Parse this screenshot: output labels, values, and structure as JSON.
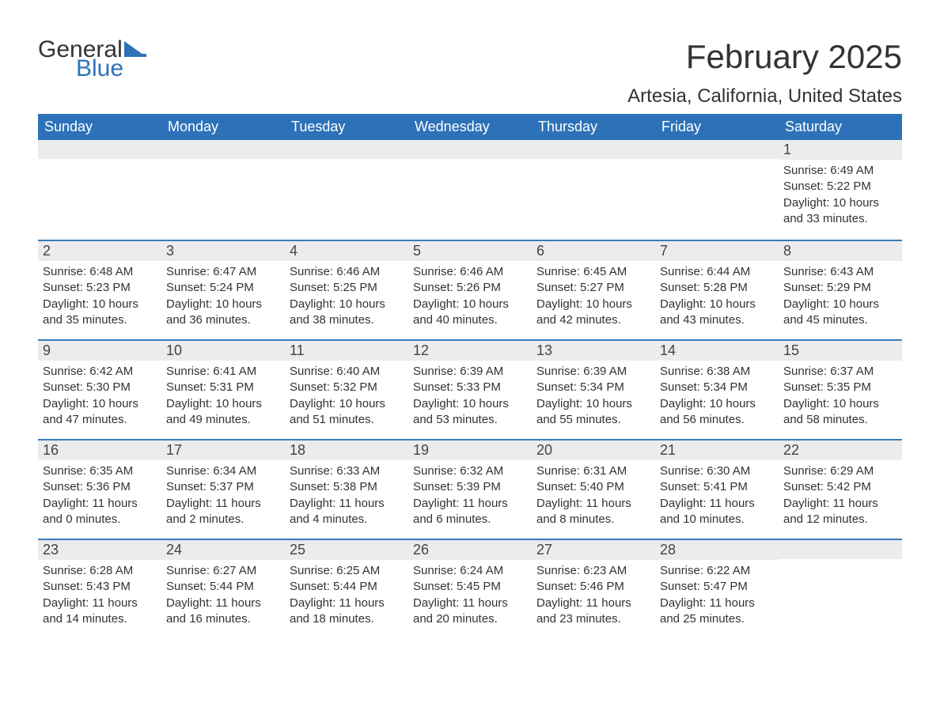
{
  "logo": {
    "word1": "General",
    "word2": "Blue"
  },
  "title": "February 2025",
  "location": "Artesia, California, United States",
  "colors": {
    "header_bg": "#2d72b8",
    "header_text": "#ffffff",
    "daynum_bg": "#ececec",
    "row_border": "#3a7abf",
    "body_text": "#333333",
    "logo_blue": "#2d72b8"
  },
  "weekdays": [
    "Sunday",
    "Monday",
    "Tuesday",
    "Wednesday",
    "Thursday",
    "Friday",
    "Saturday"
  ],
  "first_weekday_index": 6,
  "days": [
    {
      "n": 1,
      "sunrise": "6:49 AM",
      "sunset": "5:22 PM",
      "daylight": "10 hours and 33 minutes."
    },
    {
      "n": 2,
      "sunrise": "6:48 AM",
      "sunset": "5:23 PM",
      "daylight": "10 hours and 35 minutes."
    },
    {
      "n": 3,
      "sunrise": "6:47 AM",
      "sunset": "5:24 PM",
      "daylight": "10 hours and 36 minutes."
    },
    {
      "n": 4,
      "sunrise": "6:46 AM",
      "sunset": "5:25 PM",
      "daylight": "10 hours and 38 minutes."
    },
    {
      "n": 5,
      "sunrise": "6:46 AM",
      "sunset": "5:26 PM",
      "daylight": "10 hours and 40 minutes."
    },
    {
      "n": 6,
      "sunrise": "6:45 AM",
      "sunset": "5:27 PM",
      "daylight": "10 hours and 42 minutes."
    },
    {
      "n": 7,
      "sunrise": "6:44 AM",
      "sunset": "5:28 PM",
      "daylight": "10 hours and 43 minutes."
    },
    {
      "n": 8,
      "sunrise": "6:43 AM",
      "sunset": "5:29 PM",
      "daylight": "10 hours and 45 minutes."
    },
    {
      "n": 9,
      "sunrise": "6:42 AM",
      "sunset": "5:30 PM",
      "daylight": "10 hours and 47 minutes."
    },
    {
      "n": 10,
      "sunrise": "6:41 AM",
      "sunset": "5:31 PM",
      "daylight": "10 hours and 49 minutes."
    },
    {
      "n": 11,
      "sunrise": "6:40 AM",
      "sunset": "5:32 PM",
      "daylight": "10 hours and 51 minutes."
    },
    {
      "n": 12,
      "sunrise": "6:39 AM",
      "sunset": "5:33 PM",
      "daylight": "10 hours and 53 minutes."
    },
    {
      "n": 13,
      "sunrise": "6:39 AM",
      "sunset": "5:34 PM",
      "daylight": "10 hours and 55 minutes."
    },
    {
      "n": 14,
      "sunrise": "6:38 AM",
      "sunset": "5:34 PM",
      "daylight": "10 hours and 56 minutes."
    },
    {
      "n": 15,
      "sunrise": "6:37 AM",
      "sunset": "5:35 PM",
      "daylight": "10 hours and 58 minutes."
    },
    {
      "n": 16,
      "sunrise": "6:35 AM",
      "sunset": "5:36 PM",
      "daylight": "11 hours and 0 minutes."
    },
    {
      "n": 17,
      "sunrise": "6:34 AM",
      "sunset": "5:37 PM",
      "daylight": "11 hours and 2 minutes."
    },
    {
      "n": 18,
      "sunrise": "6:33 AM",
      "sunset": "5:38 PM",
      "daylight": "11 hours and 4 minutes."
    },
    {
      "n": 19,
      "sunrise": "6:32 AM",
      "sunset": "5:39 PM",
      "daylight": "11 hours and 6 minutes."
    },
    {
      "n": 20,
      "sunrise": "6:31 AM",
      "sunset": "5:40 PM",
      "daylight": "11 hours and 8 minutes."
    },
    {
      "n": 21,
      "sunrise": "6:30 AM",
      "sunset": "5:41 PM",
      "daylight": "11 hours and 10 minutes."
    },
    {
      "n": 22,
      "sunrise": "6:29 AM",
      "sunset": "5:42 PM",
      "daylight": "11 hours and 12 minutes."
    },
    {
      "n": 23,
      "sunrise": "6:28 AM",
      "sunset": "5:43 PM",
      "daylight": "11 hours and 14 minutes."
    },
    {
      "n": 24,
      "sunrise": "6:27 AM",
      "sunset": "5:44 PM",
      "daylight": "11 hours and 16 minutes."
    },
    {
      "n": 25,
      "sunrise": "6:25 AM",
      "sunset": "5:44 PM",
      "daylight": "11 hours and 18 minutes."
    },
    {
      "n": 26,
      "sunrise": "6:24 AM",
      "sunset": "5:45 PM",
      "daylight": "11 hours and 20 minutes."
    },
    {
      "n": 27,
      "sunrise": "6:23 AM",
      "sunset": "5:46 PM",
      "daylight": "11 hours and 23 minutes."
    },
    {
      "n": 28,
      "sunrise": "6:22 AM",
      "sunset": "5:47 PM",
      "daylight": "11 hours and 25 minutes."
    }
  ],
  "labels": {
    "sunrise": "Sunrise:",
    "sunset": "Sunset:",
    "daylight": "Daylight:"
  }
}
